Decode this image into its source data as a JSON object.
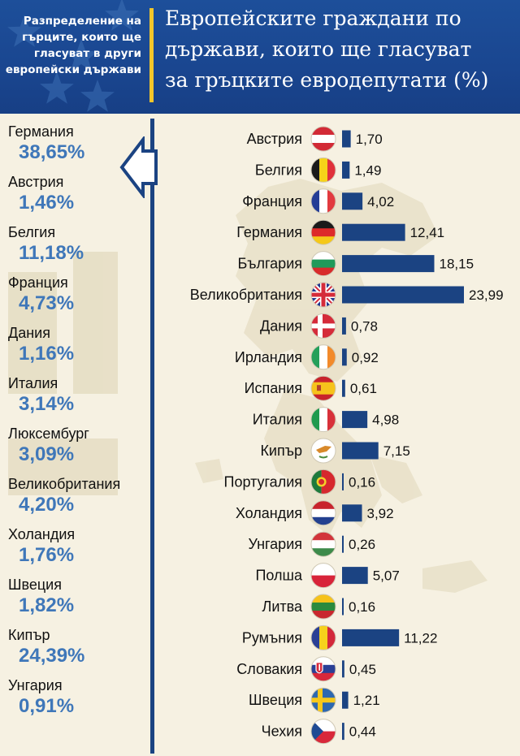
{
  "header": {
    "subtitle": "Разпределение на\nгърците, които ще\nгласуват в други\nевропейски държави",
    "title": "Европейските граждани по\nдържави, които ще гласуват\nза гръцките евродепутати (%)",
    "colors": {
      "blue": "#1b4a93",
      "gold": "#f3c62a"
    }
  },
  "left_list": [
    {
      "country": "Германия",
      "pct": "38,65%"
    },
    {
      "country": "Австрия",
      "pct": "1,46%"
    },
    {
      "country": "Белгия",
      "pct": "11,18%"
    },
    {
      "country": "Франция",
      "pct": "4,73%"
    },
    {
      "country": "Дания",
      "pct": "1,16%"
    },
    {
      "country": "Италия",
      "pct": "3,14%"
    },
    {
      "country": "Люксембург",
      "pct": "3,09%"
    },
    {
      "country": "Великобритания",
      "pct": "4,20%"
    },
    {
      "country": "Холандия",
      "pct": "1,76%"
    },
    {
      "country": "Швеция",
      "pct": "1,82%"
    },
    {
      "country": "Кипър",
      "pct": "24,39%"
    },
    {
      "country": "Унгария",
      "pct": "0,91%"
    }
  ],
  "chart_data": {
    "type": "bar",
    "orientation": "horizontal",
    "title": "Европейските граждани по държави, които ще гласуват за гръцките евродепутати (%)",
    "categories": [
      "Австрия",
      "Белгия",
      "Франция",
      "Германия",
      "България",
      "Великобритания",
      "Дания",
      "Ирландия",
      "Испания",
      "Италия",
      "Кипър",
      "Португалия",
      "Холандия",
      "Унгария",
      "Полша",
      "Литва",
      "Румъния",
      "Словакия",
      "Швеция",
      "Чехия"
    ],
    "values": [
      1.7,
      1.49,
      4.02,
      12.41,
      18.15,
      23.99,
      0.78,
      0.92,
      0.61,
      4.98,
      7.15,
      0.16,
      3.92,
      0.26,
      5.07,
      0.16,
      11.22,
      0.45,
      1.21,
      0.44
    ],
    "labels": [
      "1,70",
      "1,49",
      "4,02",
      "12,41",
      "18,15",
      "23,99",
      "0,78",
      "0,92",
      "0,61",
      "4,98",
      "7,15",
      "0,16",
      "3,92",
      "0,26",
      "5,07",
      "0,16",
      "11,22",
      "0,45",
      "1,21",
      "0,44"
    ],
    "flags": [
      "austria-flag",
      "belgium-flag",
      "france-flag",
      "germany-flag",
      "bulgaria-flag",
      "uk-flag",
      "denmark-flag",
      "ireland-flag",
      "spain-flag",
      "italy-flag",
      "cyprus-flag",
      "portugal-flag",
      "netherlands-flag",
      "hungary-flag",
      "poland-flag",
      "lithuania-flag",
      "romania-flag",
      "slovakia-flag",
      "sweden-flag",
      "czech-flag"
    ],
    "bar_color": "#1b4382",
    "grid": false
  }
}
